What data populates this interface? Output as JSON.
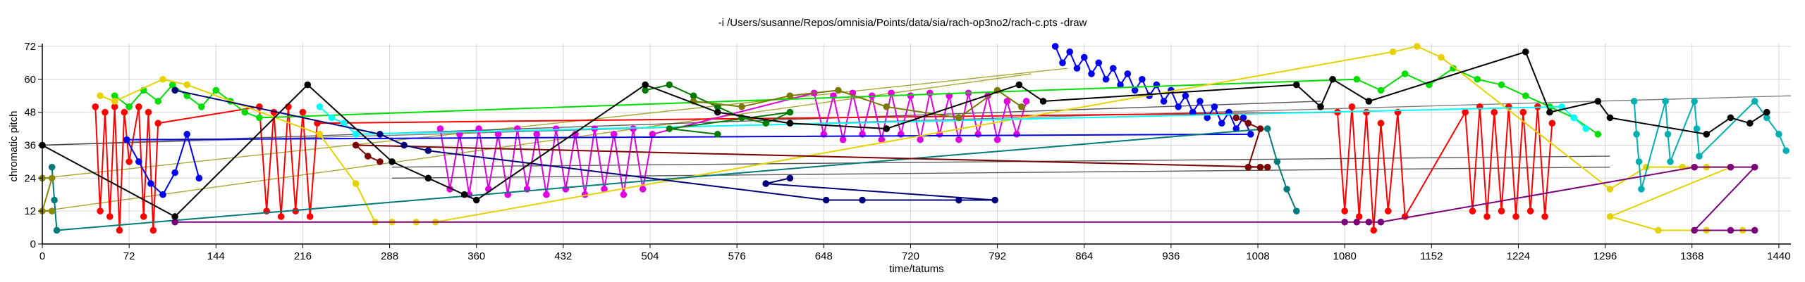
{
  "chart_data": {
    "type": "scatter",
    "title": "-i /Users/susanne/Repos/omnisia/Points/data/sia/rach-op3no2/rach-c.pts -draw",
    "xlabel": "time/tatums",
    "ylabel": "chromatic pitch",
    "xlim": [
      0,
      1450
    ],
    "ylim": [
      0,
      73
    ],
    "xticks": [
      0,
      72,
      144,
      216,
      288,
      360,
      432,
      504,
      576,
      648,
      720,
      792,
      864,
      936,
      1008,
      1080,
      1152,
      1224,
      1296,
      1368,
      1440
    ],
    "yticks": [
      0,
      12,
      24,
      36,
      48,
      60,
      72
    ],
    "grid": true,
    "legend": "none",
    "series": [
      {
        "color": "#ff0000",
        "points": [
          [
            44,
            50
          ],
          [
            48,
            12
          ],
          [
            52,
            48
          ],
          [
            56,
            10
          ],
          [
            60,
            50
          ],
          [
            64,
            5
          ],
          [
            68,
            48
          ],
          [
            72,
            30
          ],
          [
            80,
            50
          ],
          [
            84,
            10
          ],
          [
            88,
            48
          ],
          [
            92,
            5
          ],
          [
            96,
            44
          ],
          [
            180,
            50
          ],
          [
            186,
            12
          ],
          [
            192,
            48
          ],
          [
            198,
            10
          ],
          [
            204,
            50
          ],
          [
            210,
            12
          ],
          [
            216,
            48
          ],
          [
            222,
            10
          ],
          [
            228,
            44
          ],
          [
            1074,
            48
          ],
          [
            1080,
            12
          ],
          [
            1086,
            50
          ],
          [
            1092,
            10
          ],
          [
            1098,
            48
          ],
          [
            1104,
            5
          ],
          [
            1110,
            44
          ],
          [
            1116,
            12
          ],
          [
            1124,
            48
          ],
          [
            1130,
            10
          ],
          [
            1180,
            48
          ],
          [
            1186,
            12
          ],
          [
            1192,
            50
          ],
          [
            1198,
            10
          ],
          [
            1204,
            48
          ],
          [
            1210,
            12
          ],
          [
            1216,
            50
          ],
          [
            1222,
            10
          ],
          [
            1228,
            48
          ],
          [
            1234,
            12
          ],
          [
            1240,
            50
          ],
          [
            1246,
            10
          ],
          [
            1252,
            44
          ]
        ]
      },
      {
        "color": "#e000e0",
        "points": [
          [
            330,
            42
          ],
          [
            338,
            20
          ],
          [
            346,
            40
          ],
          [
            354,
            18
          ],
          [
            362,
            42
          ],
          [
            370,
            20
          ],
          [
            378,
            40
          ],
          [
            386,
            18
          ],
          [
            394,
            42
          ],
          [
            402,
            20
          ],
          [
            410,
            40
          ],
          [
            418,
            18
          ],
          [
            426,
            42
          ],
          [
            434,
            20
          ],
          [
            442,
            40
          ],
          [
            450,
            18
          ],
          [
            458,
            42
          ],
          [
            466,
            20
          ],
          [
            474,
            40
          ],
          [
            482,
            18
          ],
          [
            490,
            42
          ],
          [
            498,
            20
          ],
          [
            506,
            40
          ],
          [
            640,
            55
          ],
          [
            648,
            40
          ],
          [
            656,
            54
          ],
          [
            664,
            38
          ],
          [
            672,
            55
          ],
          [
            680,
            40
          ],
          [
            688,
            54
          ],
          [
            696,
            38
          ],
          [
            704,
            55
          ],
          [
            712,
            40
          ],
          [
            720,
            54
          ],
          [
            728,
            38
          ],
          [
            736,
            55
          ],
          [
            744,
            40
          ],
          [
            752,
            54
          ],
          [
            760,
            38
          ],
          [
            768,
            55
          ],
          [
            776,
            40
          ],
          [
            784,
            54
          ],
          [
            792,
            38
          ],
          [
            800,
            52
          ],
          [
            808,
            40
          ],
          [
            816,
            52
          ]
        ]
      },
      {
        "color": "#0000ee",
        "points": [
          [
            840,
            72
          ],
          [
            846,
            66
          ],
          [
            852,
            70
          ],
          [
            858,
            64
          ],
          [
            864,
            68
          ],
          [
            870,
            62
          ],
          [
            876,
            66
          ],
          [
            882,
            60
          ],
          [
            888,
            64
          ],
          [
            894,
            58
          ],
          [
            900,
            62
          ],
          [
            906,
            56
          ],
          [
            912,
            60
          ],
          [
            918,
            54
          ],
          [
            924,
            58
          ],
          [
            930,
            52
          ],
          [
            936,
            56
          ],
          [
            942,
            50
          ],
          [
            948,
            54
          ],
          [
            954,
            48
          ],
          [
            960,
            52
          ],
          [
            966,
            46
          ],
          [
            972,
            50
          ],
          [
            978,
            44
          ],
          [
            984,
            48
          ],
          [
            990,
            42
          ],
          [
            996,
            46
          ],
          [
            1002,
            40
          ],
          [
            70,
            38
          ],
          [
            80,
            30
          ],
          [
            90,
            22
          ],
          [
            100,
            18
          ],
          [
            110,
            26
          ],
          [
            120,
            40
          ],
          [
            130,
            24
          ]
        ]
      },
      {
        "color": "#00dd00",
        "points": [
          [
            60,
            54
          ],
          [
            72,
            50
          ],
          [
            84,
            56
          ],
          [
            96,
            52
          ],
          [
            108,
            58
          ],
          [
            120,
            54
          ],
          [
            132,
            50
          ],
          [
            144,
            56
          ],
          [
            156,
            52
          ],
          [
            168,
            48
          ],
          [
            180,
            46
          ],
          [
            1090,
            60
          ],
          [
            1110,
            56
          ],
          [
            1130,
            62
          ],
          [
            1150,
            58
          ],
          [
            1170,
            64
          ],
          [
            1190,
            60
          ],
          [
            1210,
            58
          ],
          [
            1230,
            54
          ],
          [
            1250,
            50
          ],
          [
            1270,
            46
          ],
          [
            1290,
            40
          ]
        ]
      },
      {
        "color": "#e6d200",
        "points": [
          [
            48,
            54
          ],
          [
            60,
            52
          ],
          [
            100,
            60
          ],
          [
            120,
            58
          ],
          [
            230,
            40
          ],
          [
            260,
            22
          ],
          [
            276,
            8
          ],
          [
            290,
            8
          ],
          [
            310,
            8
          ],
          [
            326,
            8
          ],
          [
            1120,
            70
          ],
          [
            1140,
            72
          ],
          [
            1160,
            68
          ],
          [
            1300,
            20
          ],
          [
            1330,
            28
          ],
          [
            1360,
            28
          ],
          [
            1380,
            28
          ],
          [
            1400,
            28
          ],
          [
            1300,
            10
          ],
          [
            1340,
            5
          ],
          [
            1380,
            5
          ],
          [
            1410,
            5
          ]
        ]
      },
      {
        "color": "#00ffff",
        "points": [
          [
            230,
            50
          ],
          [
            240,
            46
          ],
          [
            250,
            44
          ],
          [
            260,
            40
          ],
          [
            1260,
            50
          ],
          [
            1270,
            46
          ],
          [
            1280,
            42
          ]
        ]
      },
      {
        "color": "#007a7a",
        "points": [
          [
            8,
            28
          ],
          [
            10,
            16
          ],
          [
            12,
            5
          ],
          [
            1016,
            42
          ],
          [
            1024,
            30
          ],
          [
            1032,
            20
          ],
          [
            1040,
            12
          ]
        ]
      },
      {
        "color": "#00b0b0",
        "points": [
          [
            1320,
            52
          ],
          [
            1322,
            40
          ],
          [
            1324,
            30
          ],
          [
            1326,
            20
          ],
          [
            1346,
            52
          ],
          [
            1348,
            40
          ],
          [
            1350,
            30
          ],
          [
            1370,
            52
          ],
          [
            1372,
            42
          ],
          [
            1374,
            32
          ],
          [
            1420,
            52
          ],
          [
            1430,
            46
          ],
          [
            1440,
            40
          ],
          [
            1446,
            34
          ]
        ]
      },
      {
        "color": "#007a00",
        "points": [
          [
            500,
            56
          ],
          [
            520,
            58
          ],
          [
            540,
            54
          ],
          [
            560,
            50
          ],
          [
            580,
            46
          ],
          [
            600,
            44
          ],
          [
            620,
            48
          ],
          [
            520,
            42
          ],
          [
            560,
            40
          ]
        ]
      },
      {
        "color": "#7a7a00",
        "points": [
          [
            540,
            52
          ],
          [
            580,
            50
          ],
          [
            620,
            54
          ],
          [
            660,
            56
          ],
          [
            700,
            50
          ],
          [
            760,
            46
          ],
          [
            792,
            56
          ],
          [
            812,
            50
          ]
        ]
      },
      {
        "color": "#7a0000",
        "points": [
          [
            990,
            46
          ],
          [
            1000,
            44
          ],
          [
            1010,
            42
          ],
          [
            1000,
            28
          ],
          [
            1010,
            28
          ],
          [
            1016,
            28
          ],
          [
            260,
            36
          ],
          [
            270,
            32
          ],
          [
            280,
            30
          ]
        ]
      },
      {
        "color": "#00007a",
        "points": [
          [
            110,
            56
          ],
          [
            280,
            40
          ],
          [
            300,
            36
          ],
          [
            320,
            34
          ],
          [
            650,
            16
          ],
          [
            680,
            16
          ],
          [
            760,
            16
          ],
          [
            790,
            16
          ],
          [
            600,
            22
          ],
          [
            620,
            24
          ]
        ]
      },
      {
        "color": "#7a007a",
        "points": [
          [
            110,
            8
          ],
          [
            1080,
            8
          ],
          [
            1090,
            8
          ],
          [
            1100,
            8
          ],
          [
            1110,
            8
          ],
          [
            1370,
            28
          ],
          [
            1400,
            28
          ],
          [
            1420,
            28
          ],
          [
            1370,
            5
          ],
          [
            1400,
            5
          ],
          [
            1420,
            5
          ]
        ]
      },
      {
        "color": "#000000",
        "points": [
          [
            0,
            36
          ],
          [
            110,
            10
          ],
          [
            220,
            58
          ],
          [
            290,
            30
          ],
          [
            320,
            24
          ],
          [
            350,
            18
          ],
          [
            360,
            16
          ],
          [
            500,
            58
          ],
          [
            560,
            48
          ],
          [
            620,
            44
          ],
          [
            700,
            42
          ],
          [
            810,
            58
          ],
          [
            830,
            52
          ],
          [
            1040,
            58
          ],
          [
            1060,
            50
          ],
          [
            1070,
            60
          ],
          [
            1100,
            52
          ],
          [
            1230,
            70
          ],
          [
            1250,
            48
          ],
          [
            1290,
            52
          ],
          [
            1300,
            46
          ],
          [
            1380,
            40
          ],
          [
            1400,
            46
          ],
          [
            1416,
            44
          ],
          [
            1430,
            48
          ]
        ]
      },
      {
        "color": "#8a8a00",
        "points": [
          [
            0,
            24
          ],
          [
            8,
            24
          ],
          [
            0,
            12
          ],
          [
            8,
            12
          ]
        ]
      }
    ],
    "connectors": [
      {
        "color": "#606060",
        "from": [
          0,
          36
        ],
        "to": [
          1450,
          54
        ]
      },
      {
        "color": "#909000",
        "from": [
          0,
          24
        ],
        "to": [
          850,
          64
        ]
      },
      {
        "color": "#909000",
        "from": [
          0,
          12
        ],
        "to": [
          820,
          62
        ]
      },
      {
        "color": "#303030",
        "from": [
          0,
          36
        ],
        "to": [
          1060,
          52
        ]
      },
      {
        "color": "#303030",
        "from": [
          290,
          28
        ],
        "to": [
          1300,
          32
        ]
      },
      {
        "color": "#303030",
        "from": [
          290,
          24
        ],
        "to": [
          1300,
          28
        ]
      }
    ]
  }
}
